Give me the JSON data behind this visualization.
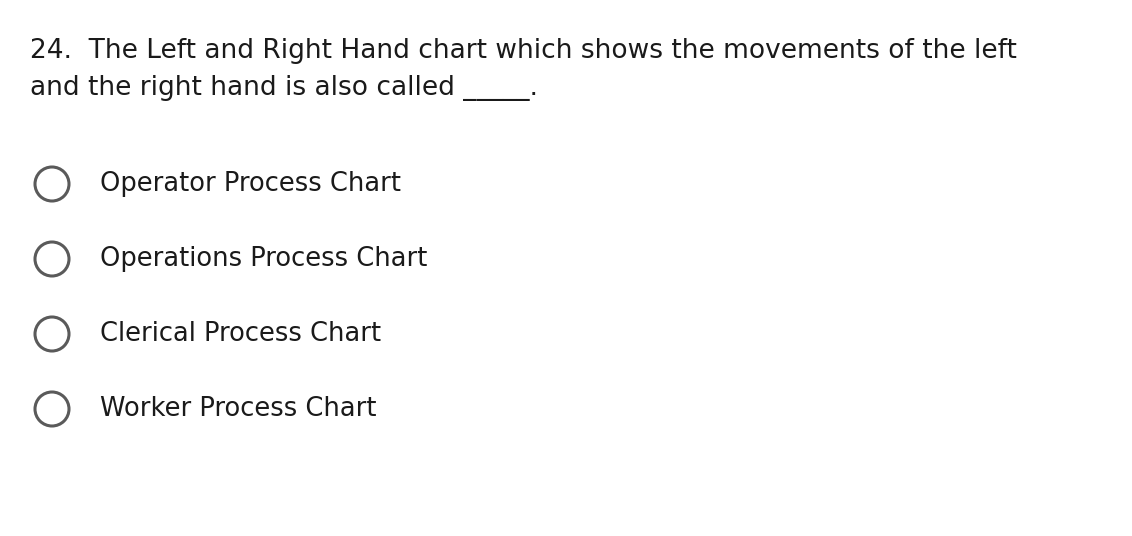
{
  "background_color": "#ffffff",
  "question_number": "24.",
  "question_line1": "The Left and Right Hand chart which shows the movements of the left",
  "question_line2": "and the right hand is also called _____.",
  "options": [
    "Operator Process Chart",
    "Operations Process Chart",
    "Clerical Process Chart",
    "Worker Process Chart"
  ],
  "text_color": "#1a1a1a",
  "circle_color": "#5a5a5a",
  "question_fontsize": 19,
  "option_fontsize": 18.5,
  "font_family": "DejaVu Sans"
}
